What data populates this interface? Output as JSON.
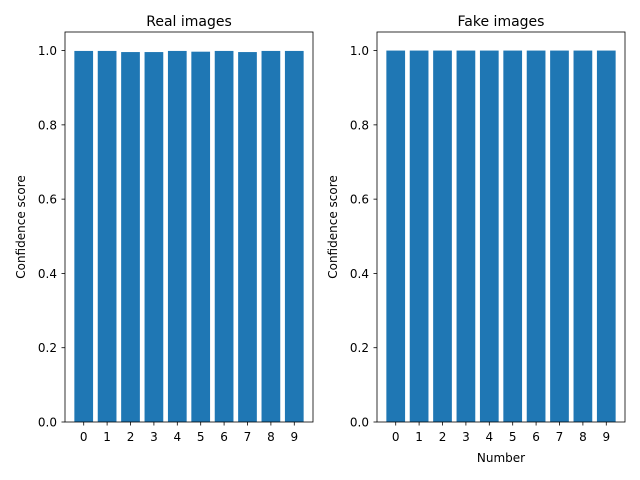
{
  "chart_data": [
    {
      "type": "bar",
      "title": "Real images",
      "xlabel": "",
      "ylabel": "Confidence score",
      "categories": [
        "0",
        "1",
        "2",
        "3",
        "4",
        "5",
        "6",
        "7",
        "8",
        "9"
      ],
      "values": [
        0.999,
        0.999,
        0.996,
        0.996,
        0.999,
        0.997,
        0.999,
        0.996,
        0.999,
        0.999
      ],
      "ylim": [
        0,
        1.05
      ],
      "yticks": [
        "0.0",
        "0.2",
        "0.4",
        "0.6",
        "0.8",
        "1.0"
      ],
      "bar_color": "#1f77b4",
      "grid": false
    },
    {
      "type": "bar",
      "title": "Fake images",
      "xlabel": "Number",
      "ylabel": "Confidence score",
      "categories": [
        "0",
        "1",
        "2",
        "3",
        "4",
        "5",
        "6",
        "7",
        "8",
        "9"
      ],
      "values": [
        1.0,
        1.0,
        1.0,
        1.0,
        1.0,
        1.0,
        1.0,
        1.0,
        1.0,
        1.0
      ],
      "ylim": [
        0,
        1.05
      ],
      "yticks": [
        "0.0",
        "0.2",
        "0.4",
        "0.6",
        "0.8",
        "1.0"
      ],
      "bar_color": "#1f77b4",
      "grid": false
    }
  ]
}
